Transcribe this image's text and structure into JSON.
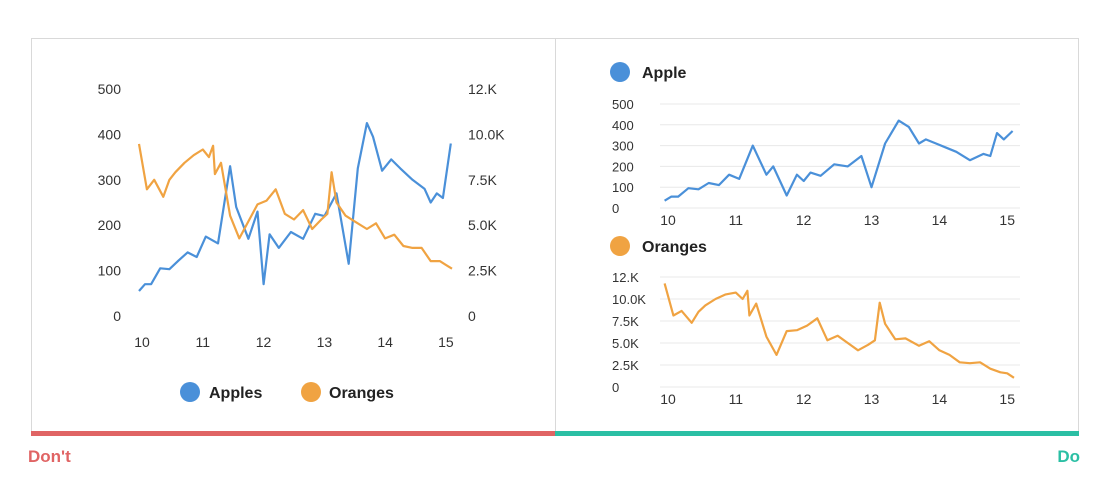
{
  "colors": {
    "apples": "#4a90d9",
    "oranges": "#f0a342",
    "dont": "#e06464",
    "do": "#2bbfa4",
    "grid": "#e8e8e8"
  },
  "verdicts": {
    "dont": "Don't",
    "do": "Do"
  },
  "chart_data": [
    {
      "type": "line",
      "panel": "dont",
      "x_ticks": [
        "10",
        "11",
        "12",
        "13",
        "14",
        "15"
      ],
      "xlim": [
        10,
        15.1
      ],
      "y_left": {
        "ylim": [
          0,
          500
        ],
        "ticks": [
          "0",
          "100",
          "200",
          "300",
          "400",
          "500"
        ]
      },
      "y_right": {
        "ylim": [
          0,
          12000
        ],
        "ticks": [
          "0",
          "2.5K",
          "5.0K",
          "7.5K",
          "10.0K",
          "12.K"
        ]
      },
      "grid": false,
      "legend": {
        "placement": "bottom",
        "entries": [
          "Apples",
          "Oranges"
        ]
      },
      "series": [
        {
          "name": "Apples",
          "axis": "left",
          "x": [
            9.95,
            10.05,
            10.15,
            10.3,
            10.45,
            10.6,
            10.75,
            10.9,
            11.05,
            11.25,
            11.45,
            11.55,
            11.75,
            11.9,
            12.0,
            12.1,
            12.25,
            12.45,
            12.65,
            12.85,
            13.0,
            13.2,
            13.4,
            13.55,
            13.7,
            13.8,
            13.95,
            14.1,
            14.25,
            14.45,
            14.65,
            14.75,
            14.85,
            14.95,
            15.08
          ],
          "y": [
            55,
            70,
            70,
            105,
            103,
            122,
            140,
            130,
            175,
            160,
            330,
            240,
            170,
            230,
            70,
            180,
            150,
            185,
            170,
            225,
            220,
            270,
            115,
            325,
            425,
            395,
            320,
            345,
            325,
            300,
            280,
            250,
            270,
            260,
            380
          ]
        },
        {
          "name": "Oranges",
          "axis": "right",
          "x": [
            9.95,
            10.08,
            10.2,
            10.35,
            10.45,
            10.55,
            10.7,
            10.85,
            11.0,
            11.1,
            11.17,
            11.2,
            11.3,
            11.45,
            11.6,
            11.75,
            11.9,
            12.05,
            12.2,
            12.35,
            12.5,
            12.65,
            12.8,
            12.95,
            13.05,
            13.12,
            13.2,
            13.35,
            13.5,
            13.7,
            13.85,
            14.0,
            14.15,
            14.3,
            14.45,
            14.6,
            14.75,
            14.9,
            15.0,
            15.1
          ],
          "y": [
            9100,
            6700,
            7200,
            6300,
            7200,
            7600,
            8100,
            8500,
            8800,
            8400,
            9000,
            7500,
            8100,
            5300,
            4100,
            5000,
            5900,
            6100,
            6700,
            5400,
            5100,
            5600,
            4600,
            5100,
            5400,
            7600,
            6000,
            5300,
            5000,
            4600,
            4900,
            4100,
            4300,
            3700,
            3600,
            3600,
            2900,
            2900,
            2700,
            2500
          ]
        }
      ]
    },
    {
      "type": "line",
      "panel": "do-top",
      "legend": {
        "placement": "top-left",
        "entries": [
          "Apple"
        ]
      },
      "x_ticks": [
        "10",
        "11",
        "12",
        "13",
        "14",
        "15"
      ],
      "xlim": [
        10,
        15.1
      ],
      "ylim": [
        0,
        500
      ],
      "y_ticks": [
        "0",
        "100",
        "200",
        "300",
        "400",
        "500"
      ],
      "grid": true,
      "series": [
        {
          "name": "Apple",
          "x": [
            9.95,
            10.05,
            10.15,
            10.3,
            10.45,
            10.6,
            10.75,
            10.9,
            11.05,
            11.25,
            11.45,
            11.55,
            11.75,
            11.9,
            12.0,
            12.1,
            12.25,
            12.45,
            12.65,
            12.85,
            13.0,
            13.2,
            13.4,
            13.55,
            13.7,
            13.8,
            13.95,
            14.1,
            14.25,
            14.45,
            14.65,
            14.75,
            14.85,
            14.95,
            15.08
          ],
          "y": [
            35,
            55,
            55,
            95,
            90,
            120,
            110,
            160,
            140,
            300,
            160,
            200,
            60,
            160,
            130,
            170,
            155,
            210,
            200,
            250,
            100,
            310,
            420,
            390,
            310,
            330,
            310,
            290,
            270,
            230,
            260,
            250,
            360,
            330,
            370
          ]
        }
      ]
    },
    {
      "type": "line",
      "panel": "do-bottom",
      "legend": {
        "placement": "top-left",
        "entries": [
          "Oranges"
        ]
      },
      "x_ticks": [
        "10",
        "11",
        "12",
        "13",
        "14",
        "15"
      ],
      "xlim": [
        10,
        15.1
      ],
      "ylim": [
        0,
        12000
      ],
      "y_ticks": [
        "0",
        "2.5K",
        "5.0K",
        "7.5K",
        "10.0K",
        "12.K"
      ],
      "grid": true,
      "series": [
        {
          "name": "Oranges",
          "x": [
            9.95,
            10.08,
            10.2,
            10.35,
            10.45,
            10.55,
            10.7,
            10.85,
            11.0,
            11.1,
            11.17,
            11.2,
            11.3,
            11.45,
            11.6,
            11.75,
            11.9,
            12.05,
            12.2,
            12.35,
            12.5,
            12.65,
            12.8,
            12.95,
            13.05,
            13.12,
            13.2,
            13.35,
            13.5,
            13.7,
            13.85,
            14.0,
            14.15,
            14.3,
            14.45,
            14.6,
            14.75,
            14.9,
            15.0,
            15.1
          ],
          "y": [
            11300,
            7800,
            8300,
            7000,
            8200,
            8900,
            9600,
            10100,
            10300,
            9600,
            10500,
            7800,
            9100,
            5500,
            3500,
            6100,
            6200,
            6700,
            7500,
            5100,
            5600,
            4800,
            4000,
            4600,
            5100,
            9200,
            6900,
            5200,
            5300,
            4500,
            5000,
            4000,
            3500,
            2700,
            2600,
            2700,
            2000,
            1600,
            1500,
            1000
          ]
        }
      ]
    }
  ]
}
